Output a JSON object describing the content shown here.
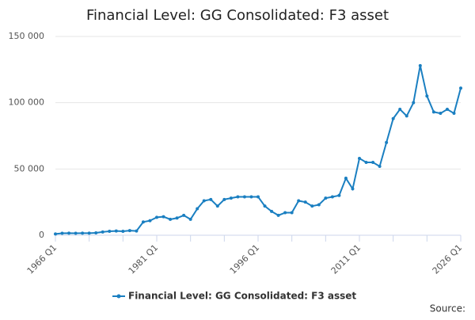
{
  "chart_data": {
    "type": "line",
    "title": "Financial Level: GG Consolidated: F3 asset",
    "categories": [
      "1966 Q1",
      null,
      null,
      null,
      null,
      null,
      null,
      null,
      null,
      null,
      null,
      null,
      null,
      null,
      null,
      "1981 Q1",
      null,
      null,
      null,
      null,
      null,
      null,
      null,
      null,
      null,
      null,
      null,
      null,
      null,
      null,
      "1996 Q1",
      null,
      null,
      null,
      null,
      null,
      null,
      null,
      null,
      null,
      null,
      null,
      null,
      null,
      null,
      "2011 Q1",
      null,
      null,
      null,
      null,
      null,
      null,
      null,
      null,
      null,
      null,
      null,
      null,
      null,
      null,
      "2026 Q1"
    ],
    "series": [
      {
        "name": "Financial Level: GG Consolidated: F3 asset",
        "color": "#1a7fc1",
        "values": [
          1000,
          1500,
          1600,
          1500,
          1600,
          1600,
          1800,
          2500,
          3000,
          3200,
          3000,
          3500,
          3200,
          10000,
          11000,
          13500,
          14000,
          12000,
          13000,
          15000,
          12000,
          20000,
          26000,
          27000,
          22000,
          27000,
          28000,
          29000,
          29000,
          29000,
          29000,
          22000,
          18000,
          15000,
          17000,
          17000,
          26000,
          25000,
          22000,
          23000,
          28000,
          29000,
          30000,
          43000,
          35000,
          58000,
          55000,
          55000,
          52000,
          70000,
          88000,
          95000,
          90000,
          100000,
          128000,
          105000,
          93000,
          92000,
          95000,
          92000,
          111000
        ]
      }
    ],
    "ylim": [
      0,
      150000
    ],
    "yticks": [
      {
        "value": 0,
        "label": "0"
      },
      {
        "value": 50000,
        "label": "50 000"
      },
      {
        "value": 100000,
        "label": "100 000"
      },
      {
        "value": 150000,
        "label": "150 000"
      }
    ],
    "grid": true,
    "source": "Source:"
  }
}
